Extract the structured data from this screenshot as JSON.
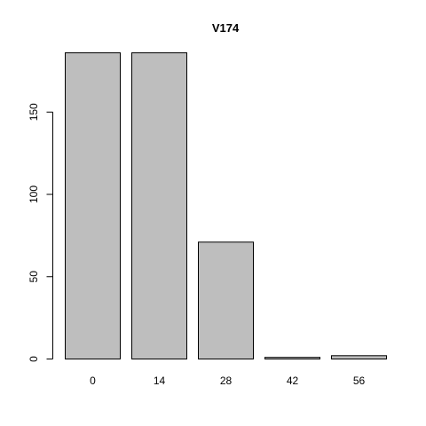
{
  "chart_data": {
    "type": "bar",
    "title": "V174",
    "xlabel": "",
    "ylabel": "",
    "categories": [
      "0",
      "14",
      "28",
      "42",
      "56"
    ],
    "values": [
      186,
      186,
      71,
      1,
      2
    ],
    "ylim": [
      0,
      186
    ],
    "yticks": [
      0,
      50,
      100,
      150
    ],
    "ytick_labels": [
      "0",
      "50",
      "100",
      "150"
    ],
    "grid": false,
    "colors": {
      "bar_fill": "#bebebe",
      "bar_stroke": "#000000"
    }
  }
}
